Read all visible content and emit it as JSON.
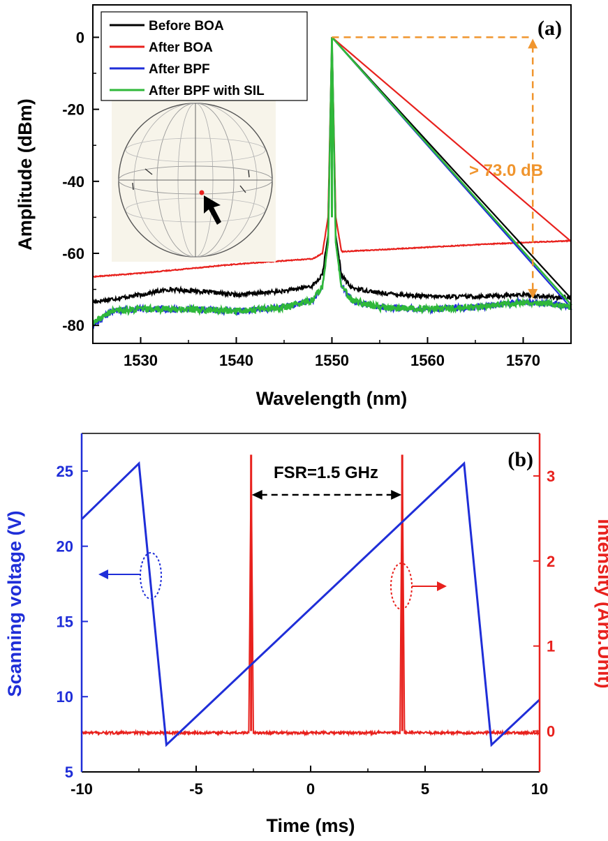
{
  "chart_data": [
    {
      "type": "line",
      "panel_label": "(a)",
      "xlabel": "Wavelength (nm)",
      "ylabel": "Amplitude (dBm)",
      "xlim": [
        1525,
        1575
      ],
      "ylim": [
        -85,
        9
      ],
      "xticks": [
        1530,
        1540,
        1550,
        1560,
        1570
      ],
      "yticks": [
        0,
        -20,
        -40,
        -60,
        -80
      ],
      "legend_position": "top-left",
      "annotation": {
        "text": "> 73.0 dB",
        "color": "#f0952e",
        "x": 1571,
        "y_top": 0,
        "y_bottom": -73
      },
      "inset": "poincare-sphere",
      "series": [
        {
          "name": "Before BOA",
          "color": "#000000",
          "x": [
            1525,
            1530,
            1533,
            1536,
            1540,
            1545,
            1548,
            1549,
            1549.6,
            1550,
            1550.4,
            1551,
            1552,
            1555,
            1560,
            1565,
            1570,
            1575
          ],
          "y": [
            -73.5,
            -71.5,
            -70,
            -70.5,
            -71.5,
            -70.5,
            -69,
            -66,
            -55,
            0,
            -55,
            -66,
            -69.5,
            -71,
            -72,
            -72,
            -71.5,
            -72.5
          ]
        },
        {
          "name": "After BOA",
          "color": "#e8211d",
          "x": [
            1525,
            1530,
            1540,
            1548,
            1549,
            1549.6,
            1550,
            1550.4,
            1551,
            1555,
            1560,
            1565,
            1570,
            1575
          ],
          "y": [
            -66.5,
            -65.5,
            -63,
            -61.5,
            -60,
            -50,
            0,
            -50,
            -59.5,
            -59,
            -58.3,
            -57.6,
            -57,
            -56.5
          ]
        },
        {
          "name": "After BPF",
          "color": "#1f2ed8",
          "x": [
            1525,
            1527,
            1530,
            1535,
            1540,
            1545,
            1548,
            1549,
            1549.6,
            1550,
            1550.4,
            1551,
            1552,
            1555,
            1560,
            1565,
            1570,
            1573,
            1575
          ],
          "y": [
            -80,
            -76,
            -75.5,
            -75.5,
            -76,
            -75,
            -73,
            -69,
            -57,
            0,
            -57,
            -69,
            -73,
            -75,
            -75.5,
            -75,
            -73.5,
            -74,
            -75
          ]
        },
        {
          "name": "After BPF with SIL",
          "color": "#2fb83a",
          "x": [
            1525,
            1527,
            1530,
            1535,
            1540,
            1545,
            1548,
            1549,
            1549.6,
            1550,
            1550.4,
            1551,
            1552,
            1555,
            1560,
            1565,
            1570,
            1573,
            1575
          ],
          "y": [
            -79.5,
            -76,
            -75.5,
            -75.5,
            -76,
            -75,
            -73,
            -69,
            -57,
            0,
            -57,
            -69,
            -73,
            -75,
            -75.5,
            -75,
            -73.5,
            -74,
            -75
          ]
        }
      ]
    },
    {
      "type": "line",
      "panel_label": "(b)",
      "xlabel": "Time (ms)",
      "ylabel": "Scanning voltage (V)",
      "y2label": "Intensity (Arb.Unit)",
      "xlim": [
        -10,
        10
      ],
      "ylim": [
        5,
        27.5
      ],
      "y2lim": [
        -0.48,
        3.5
      ],
      "xticks": [
        -10,
        -5,
        0,
        5,
        10
      ],
      "yticks": [
        5,
        10,
        15,
        20,
        25
      ],
      "y2ticks": [
        0,
        1,
        2,
        3
      ],
      "annotation": {
        "text": "FSR=1.5 GHz",
        "x_start": -2.6,
        "x_end": 4.0
      },
      "series": [
        {
          "name": "Scanning voltage",
          "axis": "left",
          "color": "#1f2ed8",
          "x": [
            -10,
            -7.5,
            -6.3,
            6.7,
            7.9,
            10
          ],
          "y": [
            21.8,
            25.5,
            6.8,
            25.5,
            6.8,
            9.8
          ]
        },
        {
          "name": "Intensity",
          "axis": "right",
          "color": "#e8211d",
          "x": [
            -10,
            -2.7,
            -2.6,
            -2.5,
            3.9,
            4.0,
            4.1,
            10
          ],
          "y": [
            -0.02,
            -0.02,
            3.25,
            -0.02,
            -0.02,
            3.25,
            -0.02,
            -0.02
          ]
        }
      ]
    }
  ]
}
